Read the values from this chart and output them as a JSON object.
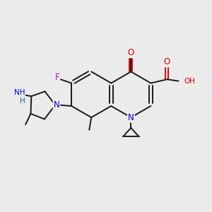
{
  "background_color": "#ebebeb",
  "bond_color": "#1a1a1a",
  "atom_colors": {
    "N": "#0000e0",
    "O": "#dd0000",
    "F": "#cc00cc",
    "H": "#007070",
    "C": "#1a1a1a"
  },
  "figsize": [
    3.0,
    3.0
  ],
  "dpi": 100,
  "xlim": [
    0,
    10
  ],
  "ylim": [
    0,
    10
  ]
}
